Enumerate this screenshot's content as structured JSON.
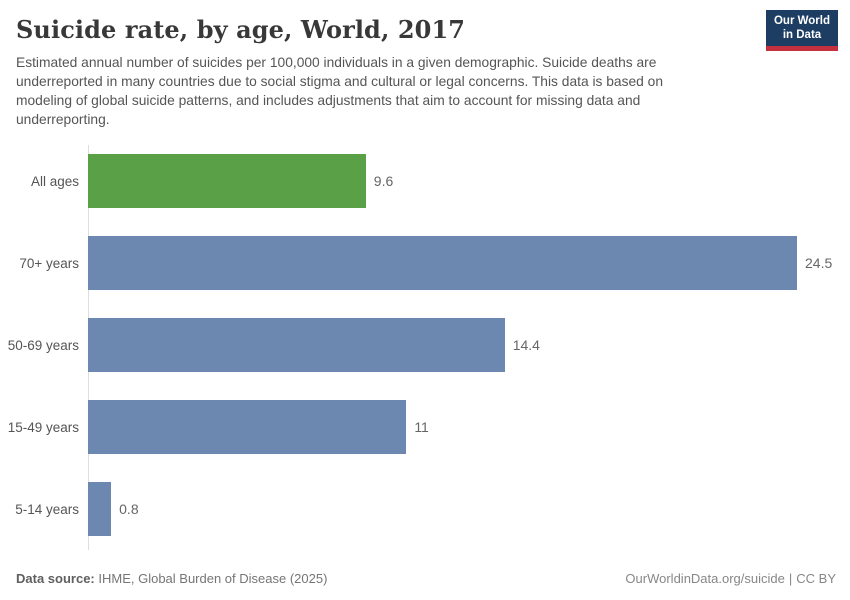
{
  "header": {
    "title": "Suicide rate, by age, World, 2017",
    "subtitle": "Estimated annual number of suicides per 100,000 individuals in a given demographic. Suicide deaths are underreported in many countries due to social stigma and cultural or legal concerns. This data is based on modeling of global suicide patterns, and includes adjustments that aim to account for missing data and underreporting.",
    "logo": {
      "line1": "Our World",
      "line2": "in Data"
    }
  },
  "chart_data": {
    "type": "bar",
    "orientation": "horizontal",
    "title": "Suicide rate, by age, World, 2017",
    "categories": [
      "All ages",
      "70+ years",
      "50-69 years",
      "15-49 years",
      "5-14 years"
    ],
    "values": [
      9.6,
      24.5,
      14.4,
      11,
      0.8
    ],
    "value_labels": [
      "9.6",
      "24.5",
      "14.4",
      "11",
      "0.8"
    ],
    "bar_colors": [
      "#5aa046",
      "#6c87b0",
      "#6c87b0",
      "#6c87b0",
      "#6c87b0"
    ],
    "xmax": 24.5,
    "xlabel": "",
    "ylabel": "",
    "grid": false,
    "legend": "none"
  },
  "colors": {
    "highlight_green": "#5aa046",
    "bar_blue": "#6c87b0",
    "logo_navy": "#1d3d63",
    "logo_red": "#c5303e",
    "axis_line": "#dedede"
  },
  "footer": {
    "datasource_label": "Data source:",
    "datasource_text": " IHME, Global Burden of Disease (2025)",
    "link_text": "OurWorldinData.org/suicide",
    "separator": "|",
    "license_text": "CC BY"
  }
}
